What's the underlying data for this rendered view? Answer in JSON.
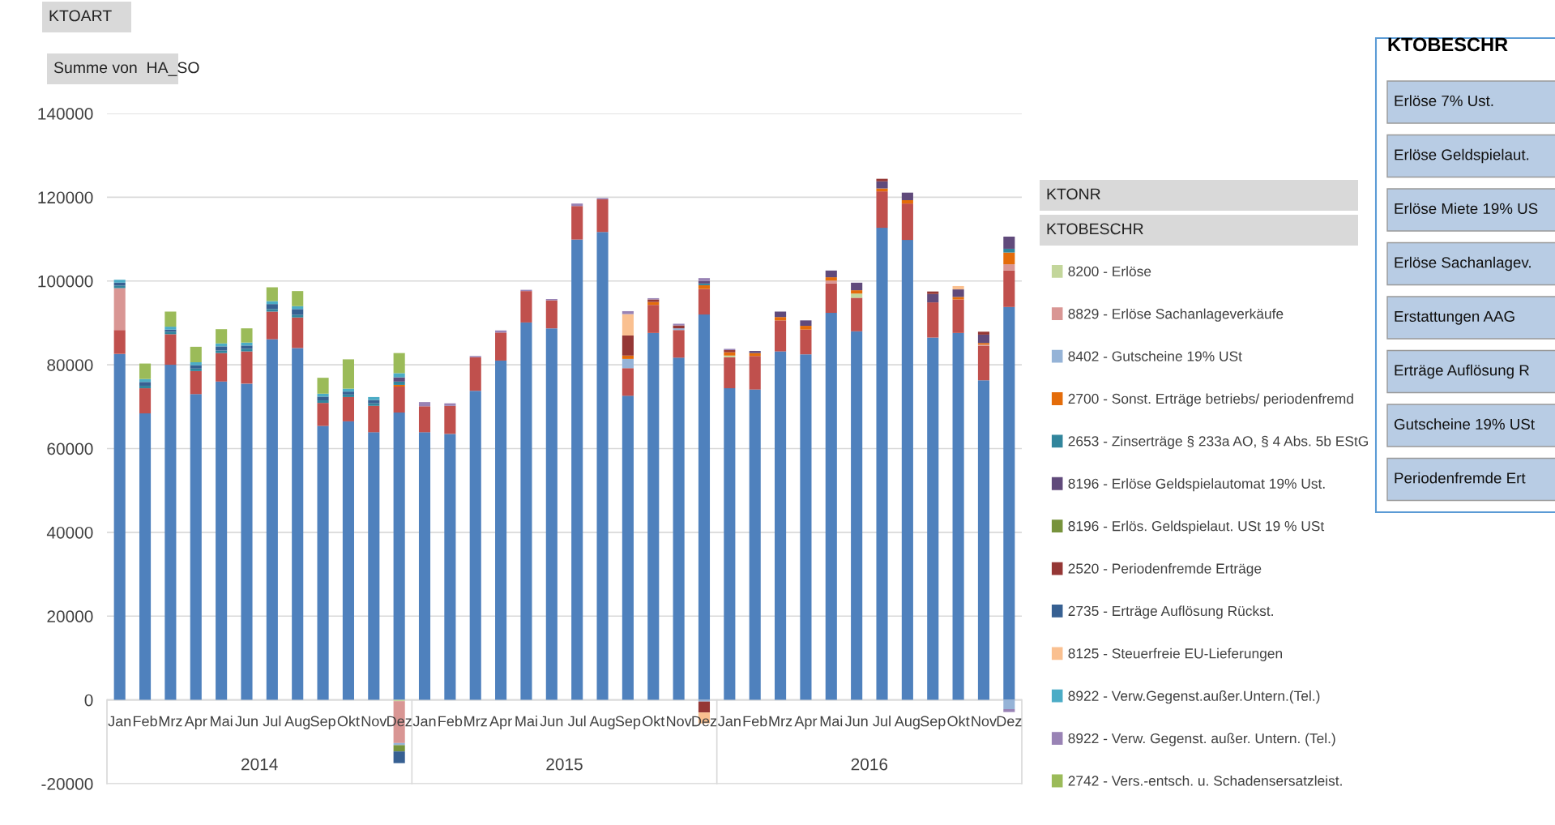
{
  "chart_data": {
    "type": "bar",
    "stacked": true,
    "categories": [
      "Jan",
      "Feb",
      "Mrz",
      "Apr",
      "Mai",
      "Jun",
      "Jul",
      "Aug",
      "Sep",
      "Okt",
      "Nov",
      "Dez",
      "Jan",
      "Feb",
      "Mrz",
      "Apr",
      "Mai",
      "Jun",
      "Jul",
      "Aug",
      "Sep",
      "Okt",
      "Nov",
      "Dez",
      "Jan",
      "Feb",
      "Mrz",
      "Apr",
      "Mai",
      "Jun",
      "Jul",
      "Aug",
      "Sep",
      "Okt",
      "Nov",
      "Dez"
    ],
    "ylim": [
      -20000,
      140000
    ],
    "yticks": [
      -20000,
      0,
      20000,
      40000,
      60000,
      80000,
      100000,
      120000,
      140000
    ],
    "grid": "y",
    "legend": "right",
    "series": [
      {
        "color": "#4f81bd",
        "values": [
          82600,
          68400,
          80000,
          73000,
          76000,
          75500,
          86100,
          84000,
          65400,
          66500,
          63900,
          68600,
          63900,
          63500,
          73800,
          81000,
          90100,
          88700,
          109900,
          111700,
          72600,
          87600,
          81700,
          92000,
          74400,
          74100,
          83200,
          82500,
          92400,
          88000,
          112700,
          109800,
          86500,
          87600,
          76300,
          93800
        ]
      },
      {
        "color": "#c0504d",
        "values": [
          5700,
          6000,
          7300,
          5500,
          6800,
          7700,
          6600,
          7300,
          5500,
          5800,
          6300,
          6200,
          6200,
          6700,
          8000,
          6700,
          7500,
          6700,
          8000,
          7800,
          6600,
          6700,
          6600,
          6100,
          7400,
          8000,
          7400,
          5900,
          7000,
          8000,
          8700,
          8700,
          8400,
          8000,
          8200,
          8700
        ]
      },
      {
        "name": "8200 - Erlöse",
        "color": "#c3d69b",
        "values": [
          null,
          null,
          null,
          null,
          null,
          null,
          null,
          null,
          null,
          null,
          null,
          -300,
          null,
          null,
          null,
          null,
          null,
          null,
          null,
          null,
          null,
          null,
          null,
          null,
          400,
          null,
          null,
          null,
          null,
          1000,
          null,
          null,
          null,
          null,
          null,
          null
        ]
      },
      {
        "name": "8829 - Erlöse Sachanlageverkäufe",
        "color": "#d99694",
        "values": [
          10000,
          null,
          null,
          null,
          null,
          null,
          null,
          null,
          null,
          null,
          null,
          -10000,
          null,
          null,
          null,
          null,
          null,
          null,
          null,
          null,
          null,
          null,
          null,
          null,
          null,
          null,
          null,
          null,
          700,
          null,
          null,
          null,
          null,
          null,
          300,
          1500
        ]
      },
      {
        "name": "8402 - Gutscheine 19% USt",
        "color": "#95b3d7",
        "values": [
          null,
          null,
          null,
          null,
          null,
          null,
          null,
          null,
          null,
          null,
          null,
          -500,
          null,
          null,
          null,
          null,
          null,
          null,
          null,
          null,
          2200,
          null,
          400,
          -400,
          null,
          null,
          null,
          null,
          null,
          null,
          null,
          null,
          null,
          null,
          null,
          -2200
        ]
      },
      {
        "name": "2700 - Sonst. Erträge betriebs/ periodenfremd",
        "color": "#e46c0a",
        "values": [
          null,
          null,
          null,
          null,
          null,
          null,
          null,
          null,
          null,
          null,
          null,
          400,
          null,
          null,
          null,
          null,
          null,
          null,
          null,
          null,
          800,
          700,
          null,
          900,
          800,
          700,
          800,
          900,
          800,
          800,
          700,
          800,
          null,
          600,
          400,
          2800
        ]
      },
      {
        "name": "2653 - Zinserträge § 233a AO, § 4 Abs. 5b EStG",
        "color": "#31859c",
        "values": [
          600,
          600,
          600,
          600,
          600,
          600,
          600,
          600,
          600,
          600,
          600,
          800,
          null,
          null,
          null,
          null,
          null,
          null,
          null,
          null,
          null,
          null,
          null,
          400,
          null,
          null,
          null,
          null,
          null,
          null,
          null,
          null,
          null,
          null,
          null,
          900
        ]
      },
      {
        "name": "8196 - Erlöse Geldspielautomat 19% Ust.",
        "color": "#604a7b",
        "values": [
          null,
          null,
          null,
          null,
          null,
          null,
          null,
          null,
          null,
          null,
          null,
          1000,
          null,
          null,
          null,
          null,
          null,
          null,
          null,
          null,
          null,
          null,
          null,
          600,
          null,
          500,
          1300,
          1300,
          1600,
          1800,
          1700,
          1800,
          2000,
          1800,
          2000,
          2900
        ]
      },
      {
        "name": "8196 - Erlös. Geldspielaut. USt 19 % USt",
        "color": "#77933c",
        "values": [
          null,
          null,
          null,
          null,
          null,
          null,
          null,
          null,
          null,
          null,
          null,
          -1500,
          null,
          null,
          null,
          null,
          null,
          null,
          null,
          null,
          null,
          null,
          null,
          null,
          null,
          null,
          null,
          null,
          null,
          null,
          null,
          null,
          null,
          null,
          null,
          null
        ]
      },
      {
        "name": "2520 - Periodenfremde Erträge",
        "color": "#953735",
        "values": [
          null,
          null,
          null,
          null,
          null,
          null,
          null,
          null,
          null,
          null,
          null,
          null,
          null,
          null,
          null,
          null,
          null,
          null,
          null,
          null,
          4800,
          600,
          700,
          -2600,
          500,
          null,
          null,
          null,
          null,
          null,
          600,
          null,
          600,
          null,
          700,
          null
        ]
      },
      {
        "name": "2735 - Erträge Auflösung Rückst.",
        "color": "#376092",
        "values": [
          700,
          900,
          500,
          800,
          1000,
          800,
          1200,
          1400,
          900,
          700,
          800,
          -2800,
          null,
          null,
          null,
          null,
          null,
          null,
          null,
          null,
          null,
          null,
          null,
          null,
          null,
          null,
          null,
          null,
          null,
          null,
          null,
          null,
          null,
          null,
          null,
          null
        ]
      },
      {
        "name": "8125 - Steuerfreie EU-Lieferungen",
        "color": "#fac090",
        "values": [
          null,
          null,
          null,
          null,
          null,
          null,
          null,
          null,
          null,
          null,
          null,
          null,
          null,
          null,
          null,
          null,
          null,
          null,
          null,
          null,
          5100,
          null,
          null,
          -2600,
          null,
          null,
          null,
          null,
          null,
          null,
          null,
          null,
          null,
          800,
          null,
          null
        ]
      },
      {
        "name": "8922 - Verw.Gegenst.außer.Untern.(Tel.)",
        "color": "#4bacc6",
        "values": [
          700,
          700,
          700,
          700,
          700,
          700,
          700,
          700,
          700,
          700,
          700,
          1000,
          null,
          null,
          null,
          null,
          null,
          null,
          null,
          null,
          null,
          null,
          null,
          null,
          null,
          null,
          null,
          null,
          null,
          null,
          null,
          null,
          null,
          null,
          null,
          null
        ]
      },
      {
        "name": "8922 - Verw. Gegenst. außer. Untern. (Tel.)",
        "color": "#9983b5",
        "values": [
          null,
          null,
          null,
          null,
          null,
          null,
          null,
          null,
          null,
          null,
          null,
          null,
          1000,
          600,
          300,
          500,
          300,
          300,
          600,
          300,
          700,
          300,
          400,
          700,
          300,
          null,
          null,
          null,
          null,
          null,
          null,
          null,
          null,
          null,
          null,
          -700
        ]
      },
      {
        "name": "2742 - Vers.-entsch. u. Schadensersatzleist.",
        "color": "#9bbb59",
        "values": [
          null,
          3700,
          3600,
          3700,
          3400,
          3400,
          3300,
          3600,
          3800,
          7000,
          null,
          4800,
          null,
          null,
          null,
          null,
          null,
          null,
          null,
          null,
          null,
          null,
          null,
          null,
          null,
          null,
          null,
          null,
          null,
          null,
          null,
          null,
          null,
          null,
          null,
          null
        ]
      }
    ],
    "annotations": [
      "2014",
      "2015",
      "2016",
      "KTOART",
      "Summe von  HA_SO",
      "KTONR",
      "KTOBESCHR",
      "KTOBESCHR",
      "Erlöse 7% Ust.",
      "Erlöse Geldspielaut.",
      "Erlöse Miete 19% US",
      "Erlöse Sachanlagev.",
      "Erstattungen AAG",
      "Erträge Auflösung R",
      "Gutscheine 19% USt",
      "Periodenfremde Ert"
    ]
  }
}
